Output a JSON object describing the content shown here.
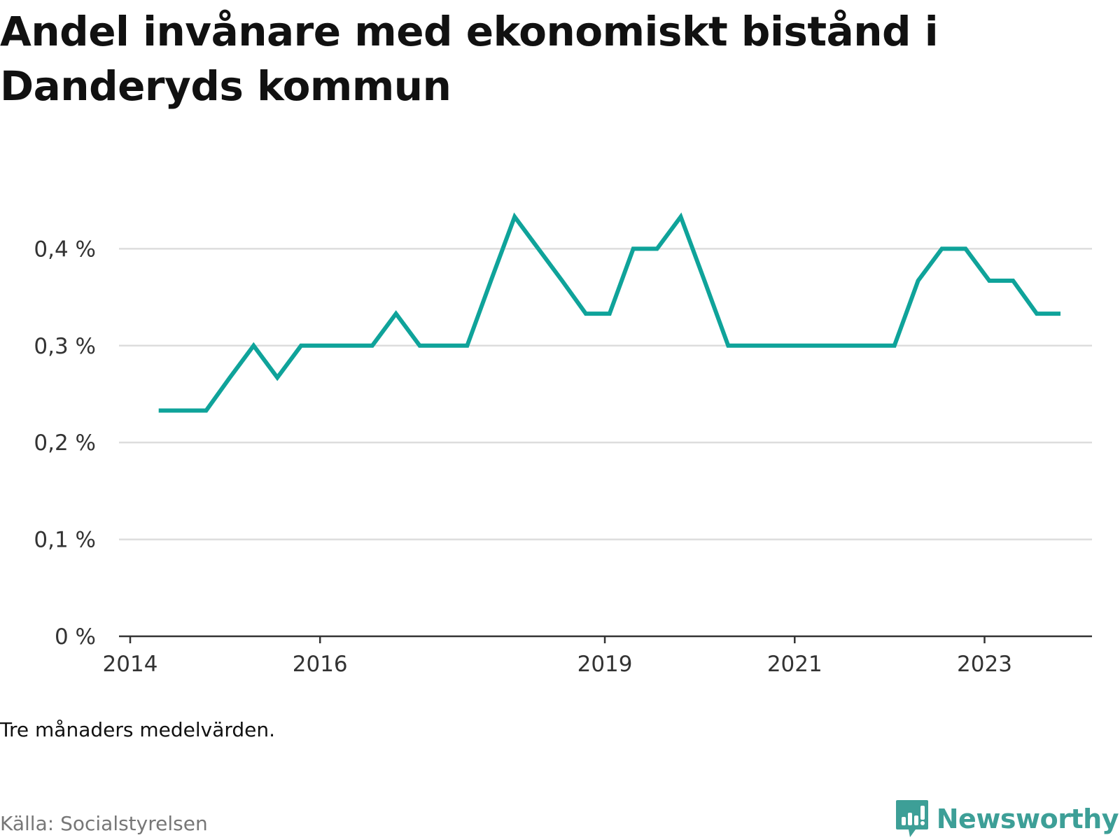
{
  "title": "Andel invånare med ekonomiskt bistånd i Danderyds kommun",
  "note": "Tre månaders medelvärden.",
  "source": "Källa: Socialstyrelsen",
  "logo": {
    "text": "Newsworthy",
    "icon": "bar-chart-speech-bubble-icon"
  },
  "colors": {
    "line": "#0fa39a",
    "grid": "#dddddd",
    "axis": "#333333",
    "logo": "#3d9f97"
  },
  "chart_data": {
    "type": "line",
    "title": "Andel invånare med ekonomiskt bistånd i Danderyds kommun",
    "xlabel": "",
    "ylabel": "",
    "xlim": [
      2014.0,
      2024.25
    ],
    "ylim": [
      0,
      0.4
    ],
    "grid": true,
    "legend": "none",
    "y_ticks": [
      {
        "value": 0,
        "label": "0 %"
      },
      {
        "value": 0.1,
        "label": "0,1 %"
      },
      {
        "value": 0.2,
        "label": "0,2 %"
      },
      {
        "value": 0.3,
        "label": "0,3 %"
      },
      {
        "value": 0.4,
        "label": "0,4 %"
      }
    ],
    "x_ticks": [
      {
        "value": 2014,
        "label": "2014"
      },
      {
        "value": 2016,
        "label": "2016"
      },
      {
        "value": 2019,
        "label": "2019"
      },
      {
        "value": 2021,
        "label": "2021"
      },
      {
        "value": 2023,
        "label": "2023"
      }
    ],
    "series": [
      {
        "x": [
          2014.3,
          2014.55,
          2014.8,
          2015.05,
          2015.3,
          2015.55,
          2015.8,
          2016.05,
          2016.3,
          2016.55,
          2016.8,
          2017.05,
          2017.3,
          2017.55,
          2017.8,
          2018.05,
          2018.3,
          2018.55,
          2018.8,
          2019.05,
          2019.3,
          2019.55,
          2019.8,
          2020.05,
          2020.3,
          2020.55,
          2020.8,
          2021.05,
          2021.3,
          2021.55,
          2021.8,
          2022.05,
          2022.3,
          2022.55,
          2022.8,
          2023.05,
          2023.3,
          2023.55,
          2023.8
        ],
        "values": [
          0.233,
          0.233,
          0.233,
          0.267,
          0.3,
          0.267,
          0.3,
          0.3,
          0.3,
          0.3,
          0.333,
          0.3,
          0.3,
          0.3,
          0.367,
          0.433,
          0.4,
          0.367,
          0.333,
          0.333,
          0.4,
          0.4,
          0.433,
          0.367,
          0.3,
          0.3,
          0.3,
          0.3,
          0.3,
          0.3,
          0.3,
          0.3,
          0.367,
          0.4,
          0.4,
          0.367,
          0.367,
          0.333,
          0.333
        ]
      }
    ]
  }
}
